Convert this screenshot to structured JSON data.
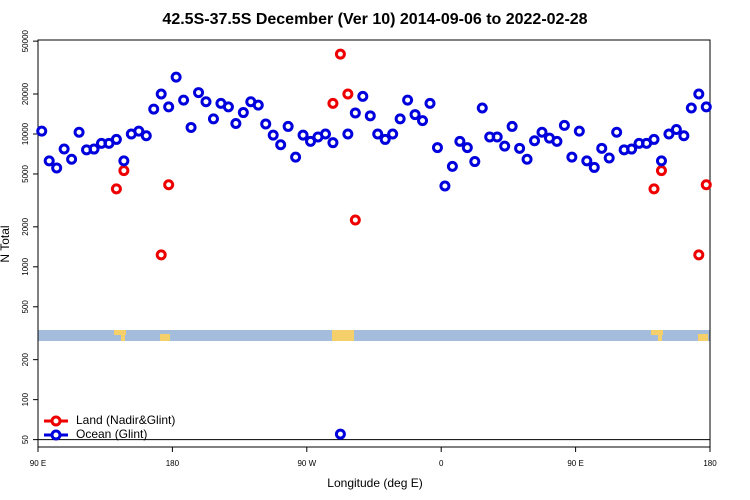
{
  "chart_data": {
    "type": "scatter",
    "title": "42.5S-37.5S December (Ver 10)   2014-09-06 to 2022-02-28",
    "xlabel": "Longitude (deg E)",
    "ylabel": "N Total",
    "log_y": true,
    "legend": "bottom-left",
    "hline": 50,
    "xlim": [
      90,
      540
    ],
    "xticks": [
      {
        "value": 90,
        "label": "90 E"
      },
      180,
      {
        "value": 270,
        "label": "90 W"
      },
      {
        "value": 360,
        "label": "0"
      },
      {
        "value": 450,
        "label": "90 E"
      },
      {
        "value": 540,
        "label": "180"
      }
    ],
    "ylim": [
      44,
      51000
    ],
    "yticks": [
      50,
      100,
      200,
      500,
      1000,
      2000,
      5000,
      10000,
      20000,
      50000
    ],
    "series": [
      {
        "name": "Land (Nadir&Glint)",
        "color": "#ee0000",
        "x": [
          142.5,
          147.5,
          172.5,
          177.5,
          287.5,
          292.5,
          297.5,
          302.5,
          502.5,
          507.5,
          532.5,
          537.5
        ],
        "values": [
          3860,
          5300,
          1230,
          4150,
          17000,
          39900,
          20000,
          2250,
          3860,
          5300,
          1230,
          4150
        ]
      },
      {
        "name": "Ocean (Glint)",
        "color": "#0000dd",
        "x": [
          92.5,
          97.5,
          102.5,
          107.5,
          112.5,
          117.5,
          122.5,
          127.5,
          132.5,
          137.5,
          142.5,
          147.5,
          152.5,
          157.5,
          162.5,
          167.5,
          172.5,
          177.5,
          182.5,
          187.5,
          192.5,
          197.5,
          202.5,
          207.5,
          212.5,
          217.5,
          222.5,
          227.5,
          232.5,
          237.5,
          242.5,
          247.5,
          252.5,
          257.5,
          262.5,
          267.5,
          272.5,
          277.5,
          282.5,
          287.5,
          292.5,
          297.5,
          302.5,
          307.5,
          312.5,
          317.5,
          322.5,
          327.5,
          332.5,
          337.5,
          342.5,
          347.5,
          352.5,
          357.5,
          362.5,
          367.5,
          372.5,
          377.5,
          382.5,
          387.5,
          392.5,
          397.5,
          402.5,
          407.5,
          412.5,
          417.5,
          422.5,
          427.5,
          432.5,
          437.5,
          442.5,
          447.5,
          452.5,
          457.5,
          462.5,
          467.5,
          472.5,
          477.5,
          482.5,
          487.5,
          492.5,
          497.5,
          502.5,
          507.5,
          512.5,
          517.5,
          522.5,
          527.5,
          532.5,
          537.5
        ],
        "values": [
          10500,
          6270,
          5550,
          7710,
          6450,
          10300,
          7600,
          7700,
          8500,
          8500,
          9100,
          6270,
          10000,
          10500,
          9700,
          15400,
          20000,
          16000,
          26800,
          18000,
          11200,
          20500,
          17500,
          13000,
          17000,
          16000,
          12000,
          14500,
          17500,
          16500,
          11900,
          9800,
          8300,
          11400,
          6700,
          9800,
          8800,
          9500,
          10000,
          8600,
          55,
          10000,
          14400,
          19200,
          13700,
          10000,
          9100,
          10000,
          13000,
          18000,
          14000,
          12600,
          17000,
          7900,
          4060,
          5700,
          8800,
          7900,
          6200,
          15700,
          9500,
          9500,
          8100,
          11400,
          7800,
          6450,
          8900,
          10300,
          9300,
          8800,
          11600,
          6700,
          10500,
          6270,
          5600,
          7800,
          6600,
          10300,
          7600,
          7700,
          8500,
          8500,
          9100,
          6270,
          10000,
          10800,
          9700,
          15700,
          20000,
          16000
        ]
      }
    ]
  }
}
